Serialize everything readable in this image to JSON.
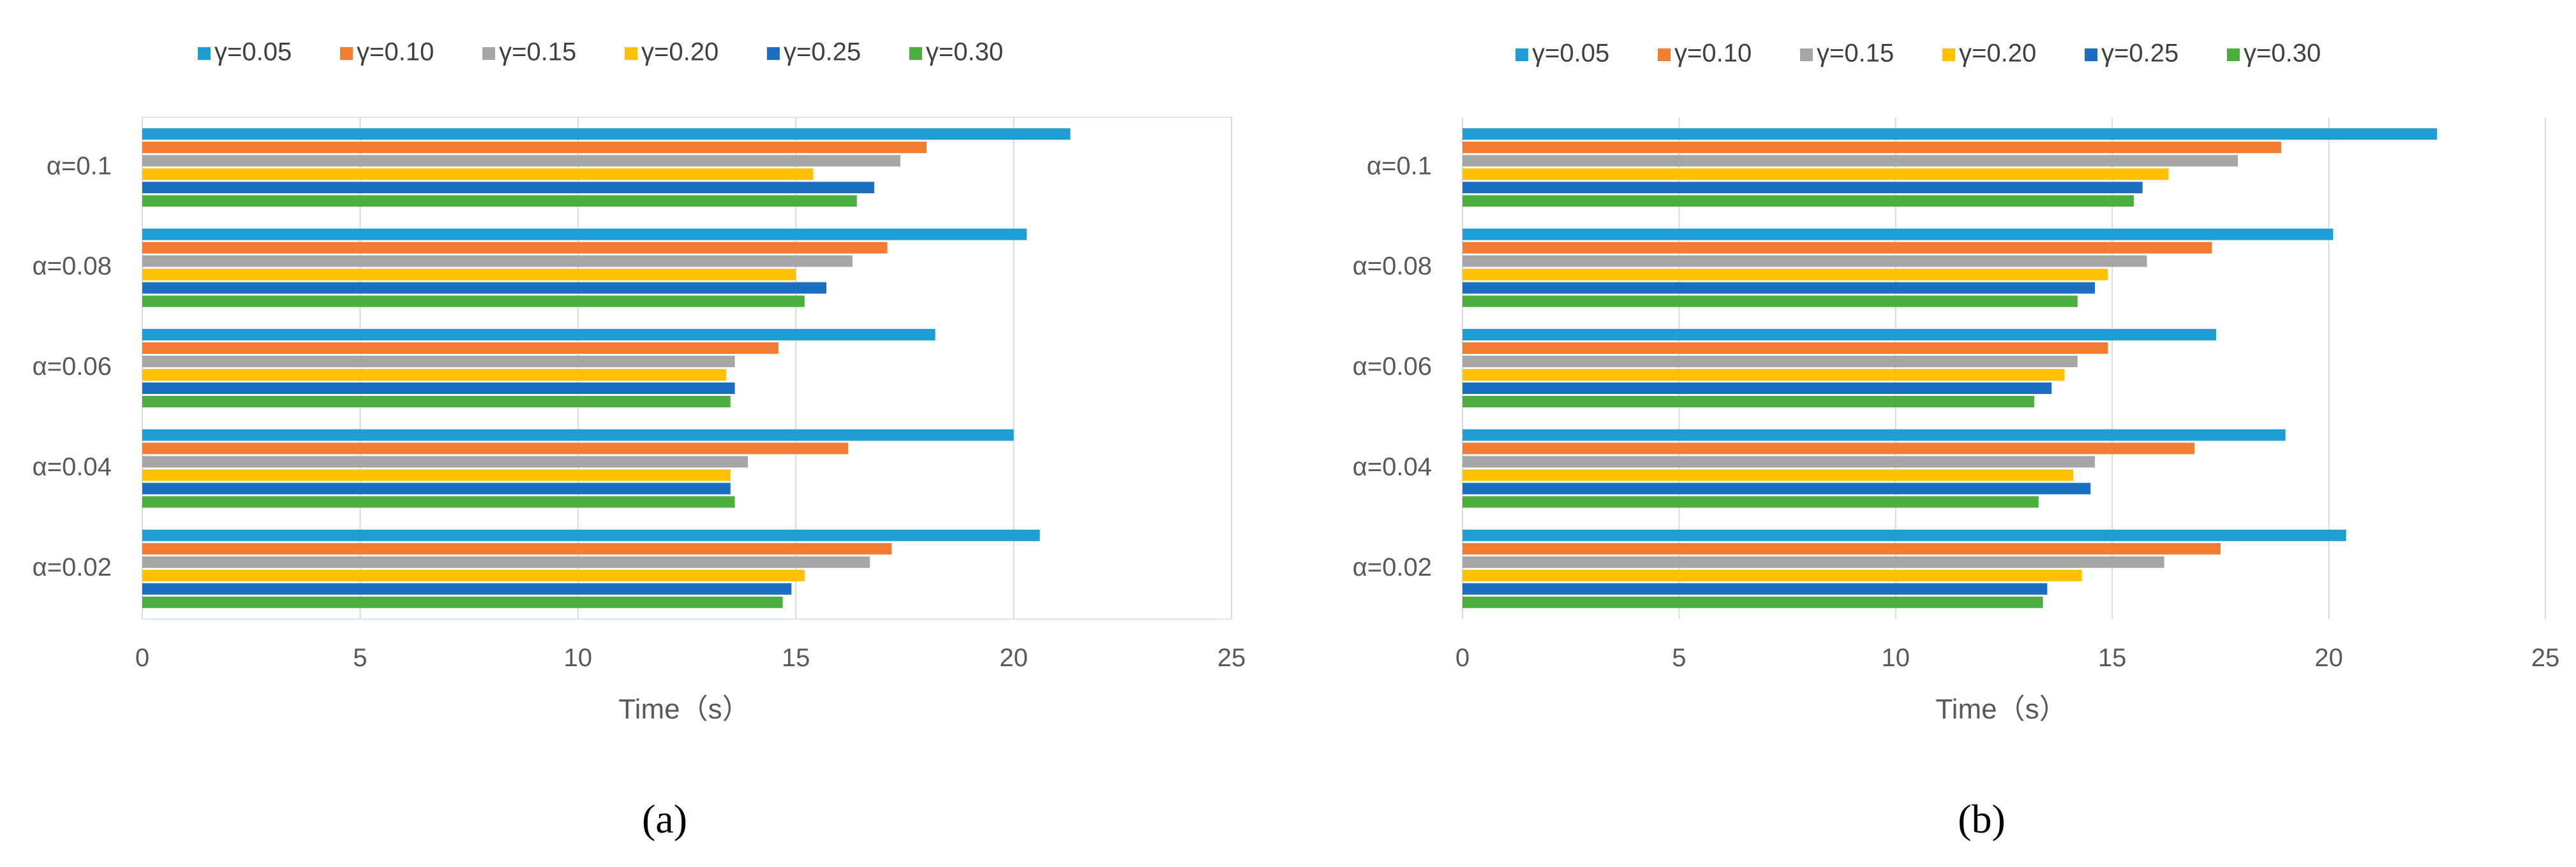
{
  "chart_data": [
    {
      "type": "bar",
      "orientation": "horizontal",
      "panel_label": "(a)",
      "title": "",
      "xlabel": "Time（s）",
      "ylabel": "",
      "xlim": [
        0,
        25
      ],
      "xticks": [
        0,
        5,
        10,
        15,
        20,
        25
      ],
      "xtick_labels": [
        "0",
        "5",
        "10",
        "15",
        "20",
        "25"
      ],
      "grid": true,
      "legend_position": "top",
      "categories": [
        "α=0.1",
        "α=0.08",
        "α=0.06",
        "α=0.04",
        "α=0.02"
      ],
      "series": [
        {
          "name": "γ=0.05",
          "color": "#1F9ED6",
          "values": [
            21.3,
            20.3,
            18.2,
            20.0,
            20.6
          ]
        },
        {
          "name": "γ=0.10",
          "color": "#F47C30",
          "values": [
            18.0,
            17.1,
            14.6,
            16.2,
            17.2
          ]
        },
        {
          "name": "γ=0.15",
          "color": "#A6A6A6",
          "values": [
            17.4,
            16.3,
            13.6,
            13.9,
            16.7
          ]
        },
        {
          "name": "γ=0.20",
          "color": "#FFC000",
          "values": [
            15.4,
            15.0,
            13.4,
            13.5,
            15.2
          ]
        },
        {
          "name": "γ=0.25",
          "color": "#1C6FC0",
          "values": [
            16.8,
            15.7,
            13.6,
            13.5,
            14.9
          ]
        },
        {
          "name": "γ=0.30",
          "color": "#4CAE3E",
          "values": [
            16.4,
            15.2,
            13.5,
            13.6,
            14.7
          ]
        }
      ]
    },
    {
      "type": "bar",
      "orientation": "horizontal",
      "panel_label": "(b)",
      "title": "",
      "xlabel": "Time（s）",
      "ylabel": "",
      "xlim": [
        0,
        25
      ],
      "xticks": [
        0,
        5,
        10,
        15,
        20,
        25
      ],
      "xtick_labels": [
        "0",
        "5",
        "10",
        "15",
        "20",
        "25"
      ],
      "grid": true,
      "legend_position": "top",
      "categories": [
        "α=0.1",
        "α=0.08",
        "α=0.06",
        "α=0.04",
        "α=0.02"
      ],
      "series": [
        {
          "name": "γ=0.05",
          "color": "#1F9ED6",
          "values": [
            22.5,
            20.1,
            17.4,
            19.0,
            20.4
          ]
        },
        {
          "name": "γ=0.10",
          "color": "#F47C30",
          "values": [
            18.9,
            17.3,
            14.9,
            16.9,
            17.5
          ]
        },
        {
          "name": "γ=0.15",
          "color": "#A6A6A6",
          "values": [
            17.9,
            15.8,
            14.2,
            14.6,
            16.2
          ]
        },
        {
          "name": "γ=0.20",
          "color": "#FFC000",
          "values": [
            16.3,
            14.9,
            13.9,
            14.1,
            14.3
          ]
        },
        {
          "name": "γ=0.25",
          "color": "#1C6FC0",
          "values": [
            15.7,
            14.6,
            13.6,
            14.5,
            13.5
          ]
        },
        {
          "name": "γ=0.30",
          "color": "#4CAE3E",
          "values": [
            15.5,
            14.2,
            13.2,
            13.3,
            13.4
          ]
        }
      ]
    }
  ]
}
